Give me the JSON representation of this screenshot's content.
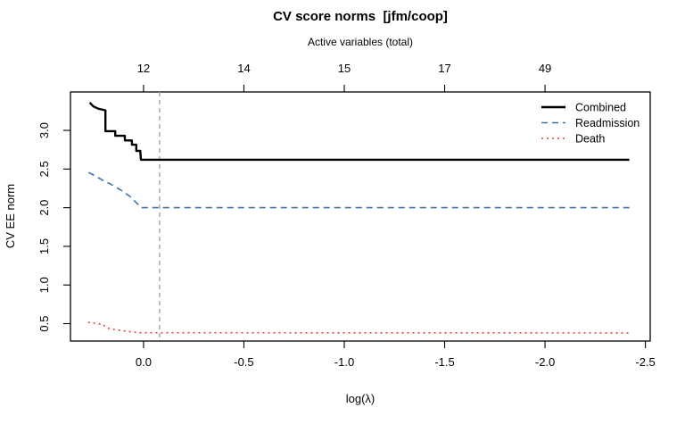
{
  "title": "CV score norms  [jfm/coop]",
  "axes": {
    "top": {
      "label": "Active variables (total)",
      "ticks": [
        {
          "x": 0.0,
          "label": "12"
        },
        {
          "x": -0.5,
          "label": "14"
        },
        {
          "x": -1.0,
          "label": "15"
        },
        {
          "x": -1.5,
          "label": "17"
        },
        {
          "x": -2.0,
          "label": "49"
        }
      ]
    },
    "bottom": {
      "label": "log(λ)",
      "ticks": [
        {
          "x": 0.0,
          "label": "0.0"
        },
        {
          "x": -0.5,
          "label": "-0.5"
        },
        {
          "x": -1.0,
          "label": "-1.0"
        },
        {
          "x": -1.5,
          "label": "-1.5"
        },
        {
          "x": -2.0,
          "label": "-2.0"
        },
        {
          "x": -2.5,
          "label": "-2.5"
        }
      ]
    },
    "left": {
      "label": "CV EE norm",
      "ticks": [
        {
          "y": 0.5,
          "label": "0.5"
        },
        {
          "y": 1.0,
          "label": "1.0"
        },
        {
          "y": 1.5,
          "label": "1.5"
        },
        {
          "y": 2.0,
          "label": "2.0"
        },
        {
          "y": 2.5,
          "label": "2.5"
        },
        {
          "y": 3.0,
          "label": "3.0"
        }
      ]
    }
  },
  "colors": {
    "combined": "#000000",
    "readmission": "#3d72a8",
    "death": "#ef3b2c",
    "vline": "#9b9b9b",
    "axis": "#000000"
  },
  "chart_data": {
    "type": "line",
    "title": "CV score norms  [jfm/coop]",
    "xlabel": "log(λ)",
    "ylabel": "CV EE norm",
    "top_axis_label": "Active variables (total)",
    "x_reversed": true,
    "grid": false,
    "legend_position": "top-right",
    "xlim": [
      0.364,
      -2.524
    ],
    "ylim": [
      0.275,
      3.497
    ],
    "vline": {
      "x": -0.08,
      "color": "#9b9b9b",
      "style": "dashed"
    },
    "active_variables": {
      "log_lambda": [
        0.0,
        -0.5,
        -1.0,
        -1.5,
        -2.0
      ],
      "counts": [
        12,
        14,
        15,
        17,
        49
      ]
    },
    "series": [
      {
        "name": "Combined",
        "color": "#000000",
        "style": "solid",
        "width": 2.4,
        "points": [
          [
            0.268,
            3.36
          ],
          [
            0.25,
            3.31
          ],
          [
            0.225,
            3.28
          ],
          [
            0.19,
            3.26
          ],
          [
            0.19,
            2.99
          ],
          [
            0.141,
            2.99
          ],
          [
            0.141,
            2.93
          ],
          [
            0.093,
            2.93
          ],
          [
            0.093,
            2.87
          ],
          [
            0.058,
            2.87
          ],
          [
            0.058,
            2.815
          ],
          [
            0.036,
            2.815
          ],
          [
            0.036,
            2.735
          ],
          [
            0.016,
            2.735
          ],
          [
            0.013,
            2.62
          ],
          [
            -2.42,
            2.62
          ]
        ]
      },
      {
        "name": "Readmission",
        "color": "#3d72a8",
        "style": "dashed",
        "width": 1.6,
        "points": [
          [
            0.274,
            2.455
          ],
          [
            0.24,
            2.41
          ],
          [
            0.2,
            2.35
          ],
          [
            0.16,
            2.3
          ],
          [
            0.108,
            2.22
          ],
          [
            0.07,
            2.15
          ],
          [
            0.03,
            2.05
          ],
          [
            0.013,
            2.0
          ],
          [
            -2.42,
            2.0
          ]
        ]
      },
      {
        "name": "Death",
        "color": "#ef3b2c",
        "style": "dotted",
        "width": 1.6,
        "points": [
          [
            0.276,
            0.517
          ],
          [
            0.23,
            0.5
          ],
          [
            0.2,
            0.49
          ],
          [
            0.19,
            0.455
          ],
          [
            0.167,
            0.432
          ],
          [
            0.12,
            0.415
          ],
          [
            0.05,
            0.39
          ],
          [
            0.013,
            0.382
          ],
          [
            -2.42,
            0.38
          ]
        ]
      }
    ]
  }
}
